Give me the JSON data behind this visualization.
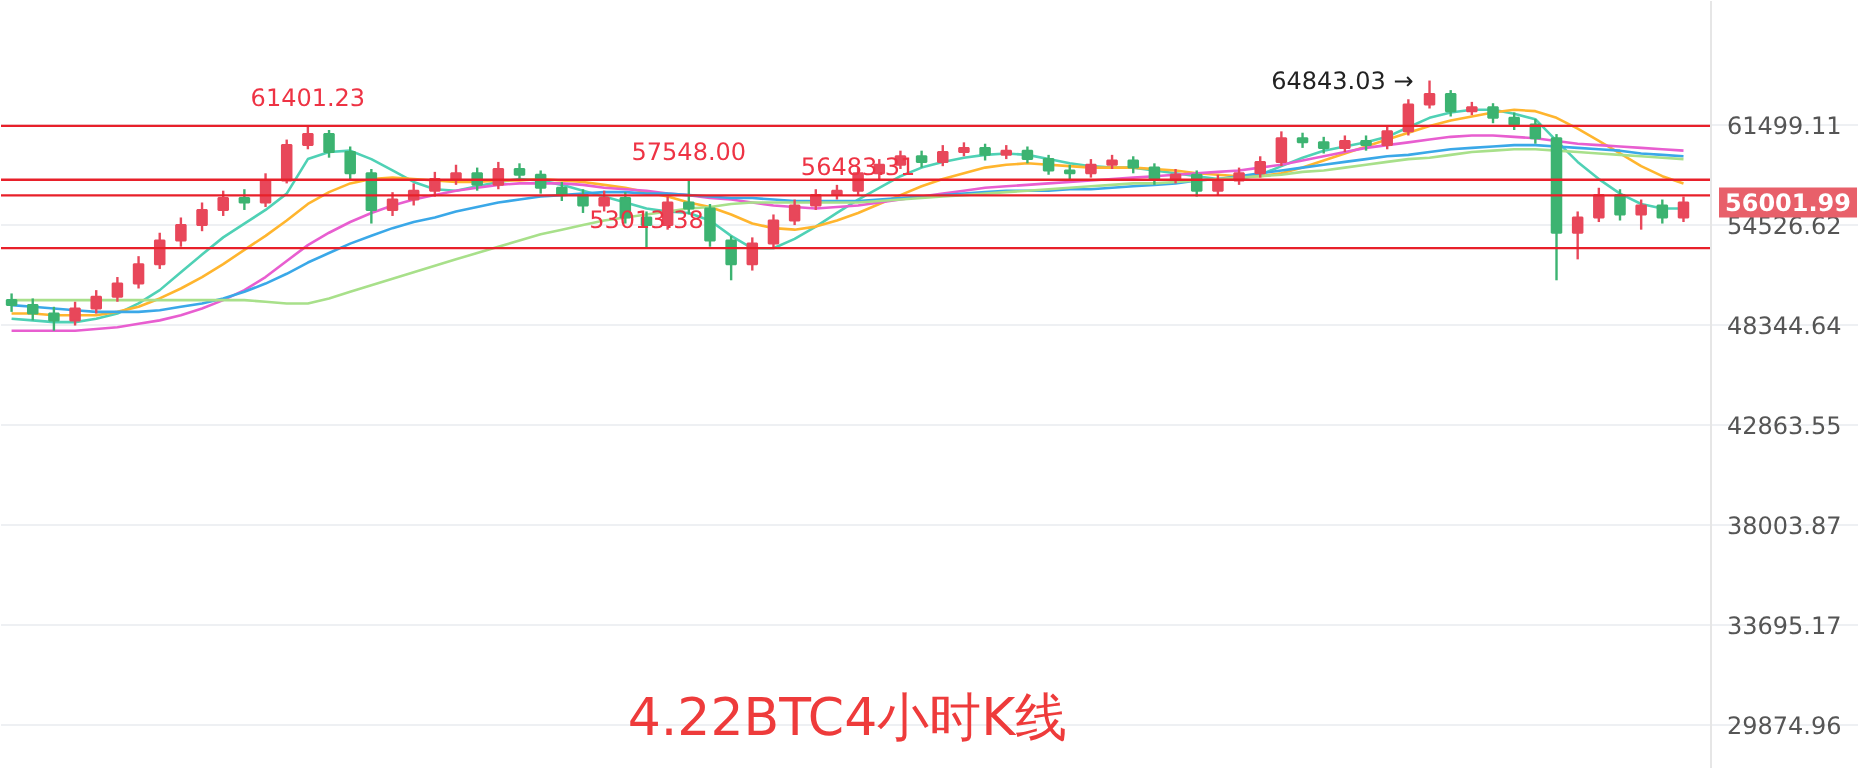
{
  "chart_data": {
    "type": "candlestick",
    "title": "4.22BTC4小时K线",
    "categories": [
      null,
      null,
      null,
      null,
      null,
      null,
      null,
      null,
      null,
      null,
      null,
      null,
      null,
      null,
      null,
      null,
      null,
      null,
      null,
      null,
      null,
      null,
      null,
      null,
      null,
      null,
      null,
      null,
      null,
      null,
      null,
      null,
      null,
      null,
      null,
      null,
      null,
      null,
      null,
      null,
      null,
      null,
      null,
      null,
      null,
      null,
      null,
      null,
      null,
      null,
      null,
      null,
      null,
      null,
      null,
      null,
      null,
      null,
      null,
      null,
      null,
      null,
      null,
      null,
      null,
      null,
      null,
      null,
      null,
      null,
      null,
      null,
      null,
      null,
      null,
      null,
      null,
      null,
      null,
      null
    ],
    "ohlc": [
      [
        49800,
        50200,
        49100,
        49500
      ],
      [
        49500,
        49900,
        48600,
        49000
      ],
      [
        49000,
        49400,
        48000,
        48600
      ],
      [
        48600,
        49700,
        48300,
        49300
      ],
      [
        49300,
        50400,
        49000,
        50000
      ],
      [
        50000,
        51200,
        49700,
        50800
      ],
      [
        50800,
        52500,
        50500,
        52000
      ],
      [
        52000,
        54000,
        51700,
        53500
      ],
      [
        53500,
        55000,
        53100,
        54500
      ],
      [
        54500,
        56000,
        54100,
        55500
      ],
      [
        55500,
        56800,
        55100,
        56300
      ],
      [
        56300,
        56900,
        55500,
        56000
      ],
      [
        56000,
        58000,
        55700,
        57500
      ],
      [
        57500,
        60400,
        57300,
        60000
      ],
      [
        60000,
        61401.23,
        59700,
        60800
      ],
      [
        60800,
        61100,
        59100,
        59500
      ],
      [
        59500,
        59900,
        57600,
        58000
      ],
      [
        58000,
        58300,
        54600,
        55500
      ],
      [
        55500,
        56700,
        55100,
        56200
      ],
      [
        56200,
        57300,
        55800,
        56800
      ],
      [
        56800,
        58100,
        56400,
        57600
      ],
      [
        57600,
        58600,
        57200,
        58000
      ],
      [
        58000,
        58400,
        56800,
        57200
      ],
      [
        57200,
        58800,
        56900,
        58300
      ],
      [
        58300,
        58700,
        57500,
        57900
      ],
      [
        57900,
        58200,
        56600,
        57000
      ],
      [
        57000,
        57400,
        56100,
        56500
      ],
      [
        56500,
        56900,
        55300,
        55800
      ],
      [
        55800,
        56800,
        55400,
        56300
      ],
      [
        56300,
        56700,
        54600,
        55000
      ],
      [
        55000,
        55400,
        53013.38,
        54500
      ],
      [
        54500,
        56400,
        54200,
        56000
      ],
      [
        56000,
        57548,
        55200,
        55600
      ],
      [
        55600,
        55900,
        53100,
        53500
      ],
      [
        53500,
        53800,
        51000,
        52000
      ],
      [
        52000,
        53700,
        51600,
        53300
      ],
      [
        53300,
        55200,
        53000,
        54800
      ],
      [
        54800,
        56200,
        54500,
        55800
      ],
      [
        55800,
        56900,
        55500,
        56500
      ],
      [
        56500,
        57200,
        56200,
        56800
      ],
      [
        56800,
        58400,
        56500,
        58000
      ],
      [
        58000,
        59000,
        57600,
        58600
      ],
      [
        58600,
        59600,
        58300,
        59200
      ],
      [
        59200,
        59600,
        58400,
        58800
      ],
      [
        58800,
        60000,
        58500,
        59500
      ],
      [
        59500,
        60200,
        59200,
        59800
      ],
      [
        59800,
        60100,
        58900,
        59300
      ],
      [
        59300,
        60000,
        59000,
        59600
      ],
      [
        59600,
        59900,
        58700,
        59000
      ],
      [
        59000,
        59300,
        57900,
        58200
      ],
      [
        58200,
        58600,
        57600,
        58000
      ],
      [
        58000,
        59000,
        57700,
        58600
      ],
      [
        58600,
        59300,
        58300,
        58900
      ],
      [
        58900,
        59200,
        58000,
        58400
      ],
      [
        58400,
        58700,
        57200,
        57600
      ],
      [
        57600,
        58300,
        57300,
        57900
      ],
      [
        57900,
        58200,
        56400,
        56800
      ],
      [
        56800,
        57900,
        56500,
        57500
      ],
      [
        57500,
        58400,
        57200,
        58000
      ],
      [
        58000,
        59200,
        57700,
        58800
      ],
      [
        58800,
        61000,
        58500,
        60500
      ],
      [
        60500,
        60900,
        59800,
        60200
      ],
      [
        60200,
        60600,
        59400,
        59800
      ],
      [
        59800,
        60700,
        59500,
        60300
      ],
      [
        60300,
        60700,
        59600,
        60000
      ],
      [
        60000,
        61400,
        59700,
        61000
      ],
      [
        61000,
        63400,
        60700,
        63000
      ],
      [
        63000,
        64843.03,
        62700,
        63800
      ],
      [
        63800,
        64100,
        62100,
        62500
      ],
      [
        62500,
        63200,
        62200,
        62800
      ],
      [
        62800,
        63100,
        61600,
        62000
      ],
      [
        62000,
        62400,
        61100,
        61500
      ],
      [
        61500,
        61900,
        60100,
        60500
      ],
      [
        60500,
        60800,
        51000,
        54000
      ],
      [
        54000,
        55400,
        52300,
        55000
      ],
      [
        55000,
        57000,
        54700,
        56500
      ],
      [
        56500,
        56900,
        54800,
        55200
      ],
      [
        55200,
        56200,
        54200,
        55800
      ],
      [
        55800,
        56200,
        54600,
        55000
      ],
      [
        55000,
        56400,
        54700,
        56001.99
      ]
    ],
    "series": [
      {
        "type": "line",
        "color": "#4fd1b5",
        "values": [
          48700,
          48600,
          48500,
          48500,
          48700,
          49000,
          49600,
          50400,
          51500,
          52600,
          53700,
          54600,
          55500,
          56600,
          59000,
          59500,
          59600,
          59000,
          58200,
          57400,
          56900,
          56800,
          57100,
          57400,
          57600,
          57500,
          57200,
          56800,
          56400,
          56000,
          55600,
          55400,
          55300,
          54800,
          53800,
          53000,
          53000,
          53600,
          54400,
          55300,
          56200,
          57000,
          57800,
          58400,
          58800,
          59100,
          59300,
          59400,
          59300,
          59000,
          58700,
          58500,
          58400,
          58400,
          58200,
          58000,
          57800,
          57600,
          57600,
          57900,
          58500,
          59100,
          59600,
          59900,
          60200,
          60600,
          61300,
          62000,
          62400,
          62600,
          62600,
          62300,
          61900,
          60300,
          58800,
          57600,
          56600,
          55900,
          55600,
          55600
        ]
      },
      {
        "type": "line",
        "color": "#ffb52e",
        "values": [
          49000,
          49000,
          48900,
          48900,
          48900,
          49100,
          49400,
          49900,
          50500,
          51200,
          52000,
          52900,
          53800,
          54800,
          55900,
          56700,
          57300,
          57600,
          57700,
          57600,
          57500,
          57400,
          57400,
          57500,
          57500,
          57600,
          57500,
          57400,
          57200,
          57000,
          56700,
          56400,
          56000,
          55700,
          55200,
          54600,
          54300,
          54200,
          54400,
          54800,
          55300,
          55900,
          56500,
          57100,
          57600,
          58000,
          58400,
          58600,
          58700,
          58600,
          58500,
          58400,
          58400,
          58400,
          58300,
          58200,
          58000,
          57900,
          57800,
          57800,
          58000,
          58400,
          58900,
          59400,
          59900,
          60400,
          60900,
          61400,
          61800,
          62100,
          62400,
          62600,
          62500,
          62000,
          61200,
          60300,
          59400,
          58500,
          57800,
          57300
        ]
      },
      {
        "type": "line",
        "color": "#e85ed0",
        "values": [
          48000,
          48000,
          48000,
          48000,
          48100,
          48200,
          48400,
          48600,
          48900,
          49300,
          49800,
          50400,
          51200,
          52200,
          53200,
          54000,
          54700,
          55300,
          55800,
          56200,
          56500,
          56800,
          57000,
          57200,
          57300,
          57300,
          57300,
          57200,
          57000,
          56900,
          56800,
          56600,
          56500,
          56300,
          56200,
          56000,
          55800,
          55700,
          55600,
          55700,
          55800,
          56000,
          56200,
          56400,
          56600,
          56800,
          57000,
          57100,
          57200,
          57300,
          57400,
          57500,
          57600,
          57700,
          57800,
          57900,
          58000,
          58100,
          58200,
          58400,
          58600,
          58900,
          59200,
          59500,
          59800,
          60000,
          60200,
          60400,
          60600,
          60700,
          60700,
          60600,
          60500,
          60300,
          60100,
          60000,
          59900,
          59800,
          59700,
          59600
        ]
      },
      {
        "type": "line",
        "color": "#3aa8e8",
        "values": [
          49500,
          49400,
          49300,
          49200,
          49100,
          49100,
          49100,
          49200,
          49400,
          49600,
          49900,
          50300,
          50800,
          51400,
          52100,
          52700,
          53300,
          53800,
          54300,
          54700,
          55000,
          55400,
          55700,
          56000,
          56200,
          56400,
          56500,
          56600,
          56700,
          56700,
          56600,
          56600,
          56500,
          56400,
          56300,
          56300,
          56200,
          56100,
          56100,
          56100,
          56100,
          56200,
          56300,
          56400,
          56500,
          56600,
          56700,
          56800,
          56800,
          56800,
          56900,
          56900,
          57000,
          57100,
          57200,
          57300,
          57500,
          57600,
          57800,
          58000,
          58200,
          58400,
          58600,
          58800,
          59000,
          59200,
          59300,
          59500,
          59700,
          59800,
          59900,
          60000,
          60000,
          59900,
          59800,
          59700,
          59600,
          59400,
          59300,
          59200
        ]
      },
      {
        "type": "line",
        "color": "#a8e08a",
        "values": [
          49800,
          49800,
          49800,
          49800,
          49800,
          49800,
          49800,
          49800,
          49800,
          49800,
          49800,
          49800,
          49700,
          49600,
          49600,
          49900,
          50300,
          50700,
          51100,
          51500,
          51900,
          52300,
          52700,
          53100,
          53500,
          53900,
          54200,
          54500,
          54800,
          55000,
          55200,
          55400,
          55600,
          55700,
          55900,
          56000,
          56000,
          56000,
          56000,
          56000,
          56000,
          56100,
          56200,
          56300,
          56400,
          56500,
          56600,
          56700,
          56800,
          56900,
          57000,
          57100,
          57200,
          57300,
          57300,
          57400,
          57500,
          57600,
          57700,
          57800,
          57900,
          58100,
          58200,
          58400,
          58600,
          58800,
          59000,
          59100,
          59300,
          59500,
          59600,
          59700,
          59700,
          59600,
          59500,
          59400,
          59300,
          59200,
          59100,
          59000
        ]
      }
    ],
    "ylim": [
      28340,
      71350
    ],
    "yticks": [
      61499.11,
      54526.62,
      48344.64,
      42863.55,
      38003.87,
      33695.17,
      29874.96
    ],
    "log": true,
    "grid": "y",
    "tick_labels": "y",
    "ref_lines": [
      {
        "axis": "y",
        "value": 61401.23,
        "label": "61401.23",
        "color": "#e8202a"
      },
      {
        "axis": "y",
        "value": 57548.0,
        "label": "57548.00",
        "color": "#e8202a"
      },
      {
        "axis": "y",
        "value": 56483.31,
        "label": "56483.31",
        "color": "#e8202a"
      },
      {
        "axis": "y",
        "value": 53013.38,
        "label": "53013.38",
        "color": "#e8202a"
      }
    ],
    "annotations": [
      "64843.03 →",
      "56001.99"
    ]
  }
}
